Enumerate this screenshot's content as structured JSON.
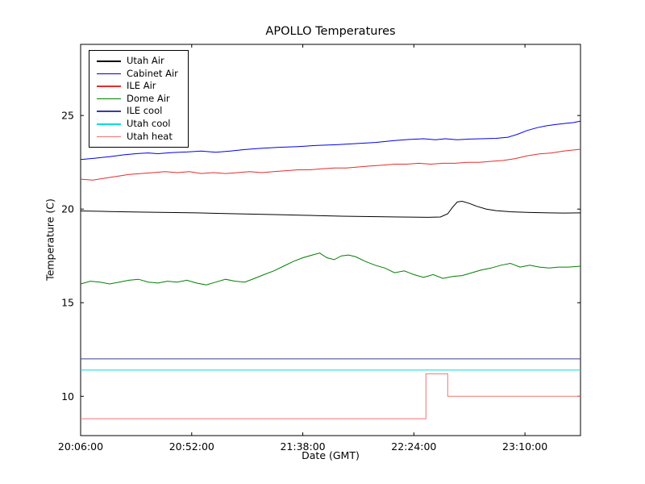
{
  "chart_data": {
    "type": "line",
    "title": "APOLLO Temperatures",
    "xlabel": "Date (GMT)",
    "ylabel": "Temperature (C)",
    "x_unit": "minutes after 20:06:00 GMT",
    "xlim": [
      0,
      207
    ],
    "ylim": [
      7.9,
      28.8
    ],
    "grid": false,
    "legend_position": "upper left",
    "x_ticks": [
      {
        "pos": 0,
        "label": "20:06:00"
      },
      {
        "pos": 46,
        "label": "20:52:00"
      },
      {
        "pos": 92,
        "label": "21:38:00"
      },
      {
        "pos": 138,
        "label": "22:24:00"
      },
      {
        "pos": 184,
        "label": "23:10:00"
      }
    ],
    "y_ticks": [
      10,
      15,
      20,
      25
    ],
    "series": [
      {
        "name": "Utah Air",
        "color": "#000000",
        "points": [
          [
            0,
            19.9
          ],
          [
            12,
            19.87
          ],
          [
            24,
            19.84
          ],
          [
            36,
            19.82
          ],
          [
            48,
            19.8
          ],
          [
            60,
            19.76
          ],
          [
            72,
            19.73
          ],
          [
            84,
            19.7
          ],
          [
            96,
            19.66
          ],
          [
            108,
            19.62
          ],
          [
            120,
            19.6
          ],
          [
            132,
            19.58
          ],
          [
            144,
            19.56
          ],
          [
            149,
            19.58
          ],
          [
            152,
            19.75
          ],
          [
            154,
            20.1
          ],
          [
            156,
            20.38
          ],
          [
            158,
            20.42
          ],
          [
            161,
            20.3
          ],
          [
            164,
            20.15
          ],
          [
            168,
            20.0
          ],
          [
            172,
            19.92
          ],
          [
            178,
            19.86
          ],
          [
            186,
            19.82
          ],
          [
            194,
            19.8
          ],
          [
            200,
            19.79
          ],
          [
            207,
            19.8
          ]
        ]
      },
      {
        "name": "Cabinet Air",
        "color": "#0000ee",
        "points": [
          [
            0,
            22.65
          ],
          [
            6,
            22.72
          ],
          [
            12,
            22.8
          ],
          [
            18,
            22.9
          ],
          [
            24,
            22.97
          ],
          [
            28,
            23.0
          ],
          [
            32,
            22.96
          ],
          [
            38,
            23.02
          ],
          [
            44,
            23.05
          ],
          [
            50,
            23.1
          ],
          [
            56,
            23.04
          ],
          [
            62,
            23.1
          ],
          [
            68,
            23.18
          ],
          [
            74,
            23.24
          ],
          [
            82,
            23.3
          ],
          [
            90,
            23.34
          ],
          [
            98,
            23.4
          ],
          [
            106,
            23.44
          ],
          [
            114,
            23.5
          ],
          [
            122,
            23.56
          ],
          [
            130,
            23.66
          ],
          [
            136,
            23.72
          ],
          [
            142,
            23.76
          ],
          [
            147,
            23.7
          ],
          [
            151,
            23.76
          ],
          [
            156,
            23.7
          ],
          [
            161,
            23.74
          ],
          [
            166,
            23.76
          ],
          [
            172,
            23.78
          ],
          [
            177,
            23.84
          ],
          [
            181,
            24.0
          ],
          [
            185,
            24.2
          ],
          [
            189,
            24.35
          ],
          [
            193,
            24.45
          ],
          [
            197,
            24.52
          ],
          [
            201,
            24.58
          ],
          [
            204,
            24.62
          ],
          [
            207,
            24.7
          ]
        ]
      },
      {
        "name": "ILE Air",
        "color": "#e82c2c",
        "points": [
          [
            0,
            21.6
          ],
          [
            5,
            21.55
          ],
          [
            10,
            21.65
          ],
          [
            15,
            21.75
          ],
          [
            20,
            21.85
          ],
          [
            25,
            21.9
          ],
          [
            30,
            21.95
          ],
          [
            35,
            22.0
          ],
          [
            40,
            21.95
          ],
          [
            45,
            22.0
          ],
          [
            50,
            21.9
          ],
          [
            55,
            21.95
          ],
          [
            60,
            21.9
          ],
          [
            65,
            21.95
          ],
          [
            70,
            22.0
          ],
          [
            75,
            21.95
          ],
          [
            80,
            22.0
          ],
          [
            85,
            22.05
          ],
          [
            90,
            22.1
          ],
          [
            95,
            22.1
          ],
          [
            100,
            22.15
          ],
          [
            105,
            22.2
          ],
          [
            110,
            22.2
          ],
          [
            115,
            22.25
          ],
          [
            120,
            22.3
          ],
          [
            125,
            22.35
          ],
          [
            130,
            22.4
          ],
          [
            135,
            22.4
          ],
          [
            140,
            22.45
          ],
          [
            145,
            22.4
          ],
          [
            150,
            22.45
          ],
          [
            155,
            22.45
          ],
          [
            160,
            22.5
          ],
          [
            165,
            22.5
          ],
          [
            170,
            22.55
          ],
          [
            175,
            22.6
          ],
          [
            180,
            22.7
          ],
          [
            185,
            22.85
          ],
          [
            190,
            22.95
          ],
          [
            195,
            23.0
          ],
          [
            200,
            23.1
          ],
          [
            207,
            23.2
          ]
        ]
      },
      {
        "name": "Dome Air",
        "color": "#007f00",
        "points": [
          [
            0,
            16.0
          ],
          [
            4,
            16.15
          ],
          [
            8,
            16.1
          ],
          [
            12,
            16.0
          ],
          [
            16,
            16.1
          ],
          [
            20,
            16.2
          ],
          [
            24,
            16.25
          ],
          [
            28,
            16.1
          ],
          [
            32,
            16.05
          ],
          [
            36,
            16.15
          ],
          [
            40,
            16.1
          ],
          [
            44,
            16.2
          ],
          [
            48,
            16.05
          ],
          [
            52,
            15.95
          ],
          [
            56,
            16.1
          ],
          [
            60,
            16.25
          ],
          [
            64,
            16.15
          ],
          [
            68,
            16.1
          ],
          [
            72,
            16.3
          ],
          [
            76,
            16.5
          ],
          [
            80,
            16.7
          ],
          [
            84,
            16.95
          ],
          [
            88,
            17.2
          ],
          [
            92,
            17.4
          ],
          [
            96,
            17.55
          ],
          [
            99,
            17.65
          ],
          [
            102,
            17.4
          ],
          [
            105,
            17.3
          ],
          [
            108,
            17.5
          ],
          [
            111,
            17.55
          ],
          [
            114,
            17.45
          ],
          [
            118,
            17.2
          ],
          [
            122,
            17.0
          ],
          [
            126,
            16.85
          ],
          [
            130,
            16.6
          ],
          [
            134,
            16.7
          ],
          [
            138,
            16.5
          ],
          [
            142,
            16.35
          ],
          [
            146,
            16.5
          ],
          [
            150,
            16.3
          ],
          [
            154,
            16.4
          ],
          [
            158,
            16.45
          ],
          [
            162,
            16.6
          ],
          [
            166,
            16.75
          ],
          [
            170,
            16.85
          ],
          [
            174,
            17.0
          ],
          [
            178,
            17.1
          ],
          [
            182,
            16.9
          ],
          [
            186,
            17.0
          ],
          [
            190,
            16.9
          ],
          [
            194,
            16.85
          ],
          [
            198,
            16.9
          ],
          [
            202,
            16.9
          ],
          [
            207,
            16.95
          ]
        ]
      },
      {
        "name": "ILE cool",
        "color": "#3b3b9e",
        "points": [
          [
            0,
            12.0
          ],
          [
            207,
            12.0
          ]
        ]
      },
      {
        "name": "Utah cool",
        "color": "#00dddd",
        "points": [
          [
            0,
            11.4
          ],
          [
            207,
            11.4
          ]
        ]
      },
      {
        "name": "Utah heat",
        "color": "#f87070",
        "points": [
          [
            0,
            8.8
          ],
          [
            143,
            8.8
          ],
          [
            143,
            11.2
          ],
          [
            152,
            11.2
          ],
          [
            152,
            10.0
          ],
          [
            207,
            10.0
          ]
        ]
      }
    ]
  }
}
